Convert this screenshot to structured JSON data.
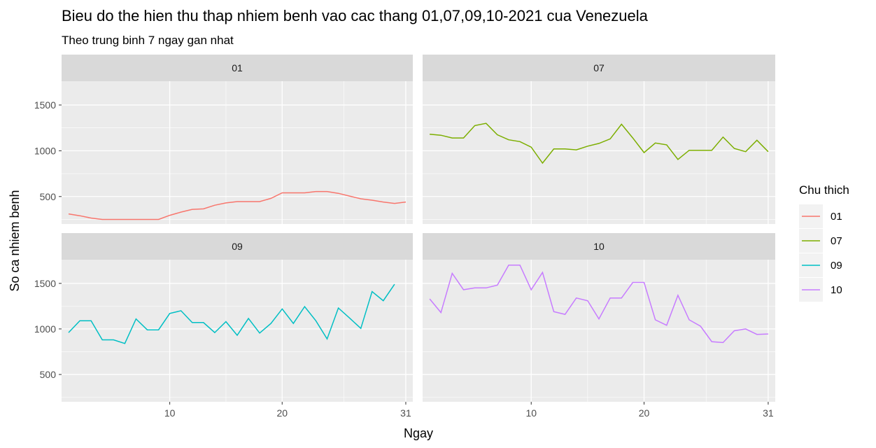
{
  "chart_data": {
    "type": "line",
    "title": "Bieu do the hien thu thap nhiem benh vao cac thang 01,07,09,10-2021 cua Venezuela",
    "subtitle": "Theo trung binh 7 ngay gan nhat",
    "xlabel": "Ngay",
    "ylabel": "So ca nhiem benh",
    "xlim": [
      1,
      31
    ],
    "ylim": [
      200,
      1760
    ],
    "x_ticks": [
      10,
      20,
      31
    ],
    "y_ticks": [
      500,
      1000,
      1500
    ],
    "grid": true,
    "legend": {
      "title": "Chu thich",
      "position": "right"
    },
    "facets": [
      {
        "label": "01",
        "color": "#F8766D",
        "x": [
          1,
          2,
          3,
          4,
          5,
          6,
          7,
          8,
          9,
          10,
          11,
          12,
          13,
          14,
          15,
          16,
          17,
          18,
          19,
          20,
          21,
          22,
          23,
          24,
          25,
          26,
          27,
          28,
          29,
          30,
          31
        ],
        "values": [
          310,
          290,
          265,
          250,
          250,
          250,
          250,
          250,
          250,
          295,
          330,
          360,
          365,
          405,
          430,
          445,
          445,
          445,
          480,
          540,
          540,
          540,
          555,
          555,
          535,
          505,
          475,
          460,
          440,
          425,
          440
        ]
      },
      {
        "label": "07",
        "color": "#7CAE00",
        "x": [
          1,
          2,
          3,
          4,
          5,
          6,
          7,
          8,
          9,
          10,
          11,
          12,
          13,
          14,
          15,
          16,
          17,
          18,
          19,
          20,
          21,
          22,
          23,
          24,
          25,
          26,
          27,
          28,
          29,
          30,
          31
        ],
        "values": [
          1180,
          1170,
          1140,
          1140,
          1275,
          1300,
          1175,
          1120,
          1100,
          1040,
          865,
          1020,
          1020,
          1010,
          1050,
          1080,
          1130,
          1290,
          1140,
          980,
          1085,
          1065,
          905,
          1005,
          1005,
          1005,
          1150,
          1025,
          990,
          1115,
          990
        ]
      },
      {
        "label": "09",
        "color": "#00BFC4",
        "x": [
          1,
          2,
          3,
          4,
          5,
          6,
          7,
          8,
          9,
          10,
          11,
          12,
          13,
          14,
          15,
          16,
          17,
          18,
          19,
          20,
          21,
          22,
          23,
          24,
          25,
          26,
          27,
          28,
          29,
          30
        ],
        "values": [
          960,
          1090,
          1090,
          880,
          880,
          840,
          1110,
          990,
          990,
          1170,
          1200,
          1070,
          1070,
          960,
          1080,
          930,
          1115,
          955,
          1060,
          1220,
          1060,
          1245,
          1090,
          890,
          1230,
          1120,
          1005,
          1410,
          1310,
          1490
        ]
      },
      {
        "label": "10",
        "color": "#C77CFF",
        "x": [
          1,
          2,
          3,
          4,
          5,
          6,
          7,
          8,
          9,
          10,
          11,
          12,
          13,
          14,
          15,
          16,
          17,
          18,
          19,
          20,
          21,
          22,
          23,
          24,
          25,
          26,
          27,
          28,
          29,
          30,
          31
        ],
        "values": [
          1330,
          1180,
          1610,
          1430,
          1450,
          1450,
          1480,
          1700,
          1700,
          1430,
          1620,
          1190,
          1160,
          1340,
          1310,
          1110,
          1340,
          1340,
          1510,
          1510,
          1100,
          1040,
          1370,
          1100,
          1030,
          860,
          850,
          980,
          1000,
          940,
          945
        ]
      }
    ]
  }
}
